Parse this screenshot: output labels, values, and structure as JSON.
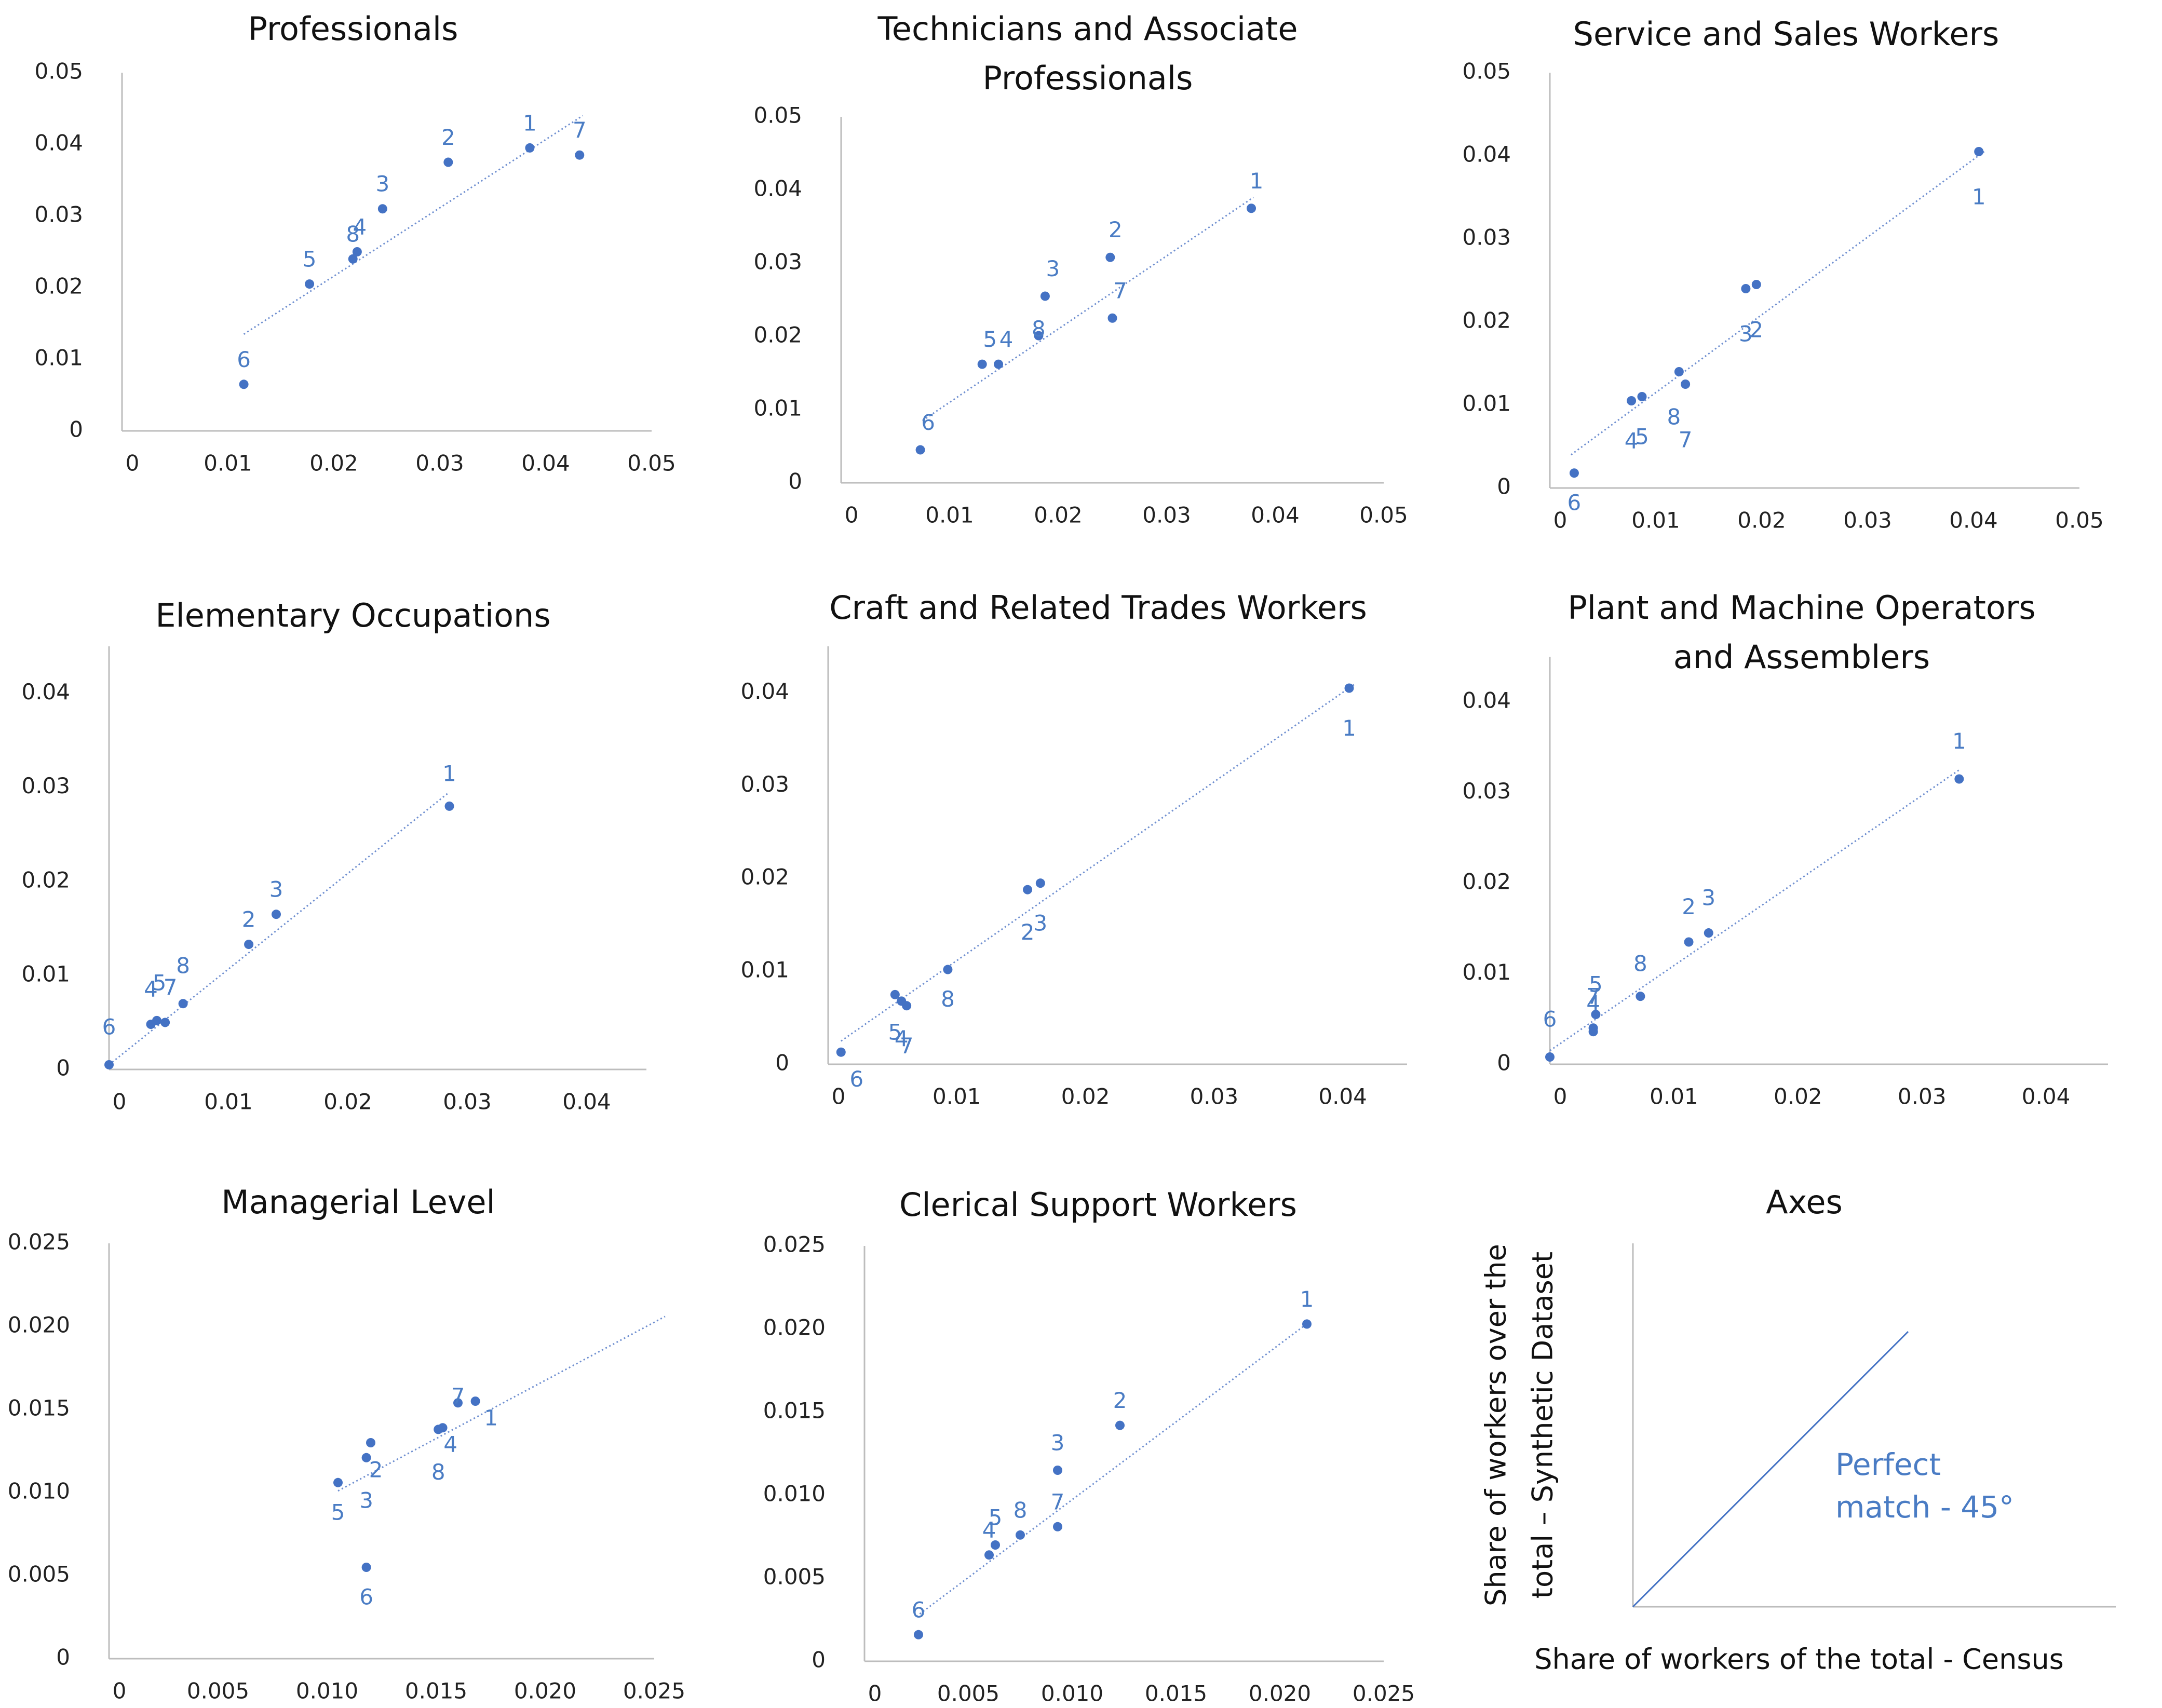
{
  "colors": {
    "point": "#4472c4",
    "label": "#4a7cc4",
    "trend": "#6f8fd0",
    "axis": "#bdbdbd",
    "ink": "#111111"
  },
  "chart_data": [
    {
      "type": "scatter",
      "title_lines": [
        "Professionals"
      ],
      "xlim": [
        0,
        0.05
      ],
      "ylim": [
        0,
        0.05
      ],
      "xticks": [
        "0",
        "0.01",
        "0.02",
        "0.03",
        "0.04",
        "0.05"
      ],
      "yticks": [
        "0",
        "0.01",
        "0.02",
        "0.03",
        "0.04",
        "0.05"
      ],
      "trendline": [
        [
          0.0115,
          0.0135
        ],
        [
          0.0435,
          0.044
        ]
      ],
      "points": [
        {
          "label": "1",
          "x": 0.0385,
          "y": 0.0395
        },
        {
          "label": "2",
          "x": 0.0308,
          "y": 0.0375
        },
        {
          "label": "3",
          "x": 0.0246,
          "y": 0.031
        },
        {
          "label": "4",
          "x": 0.0222,
          "y": 0.025
        },
        {
          "label": "5",
          "x": 0.0177,
          "y": 0.0205
        },
        {
          "label": "6",
          "x": 0.0115,
          "y": 0.0065
        },
        {
          "label": "7",
          "x": 0.0432,
          "y": 0.0385
        },
        {
          "label": "8",
          "x": 0.0218,
          "y": 0.024
        }
      ]
    },
    {
      "type": "scatter",
      "title_lines": [
        "Technicians and Associate",
        "Professionals"
      ],
      "xlim": [
        0,
        0.05
      ],
      "ylim": [
        0,
        0.05
      ],
      "xticks": [
        "0",
        "0.01",
        "0.02",
        "0.03",
        "0.04",
        "0.05"
      ],
      "yticks": [
        "0",
        "0.01",
        "0.02",
        "0.03",
        "0.04",
        "0.05"
      ],
      "trendline": [
        [
          0.0075,
          0.0085
        ],
        [
          0.038,
          0.039
        ]
      ],
      "points": [
        {
          "label": "1",
          "x": 0.0378,
          "y": 0.0375
        },
        {
          "label": "2",
          "x": 0.0248,
          "y": 0.0308
        },
        {
          "label": "3",
          "x": 0.0188,
          "y": 0.0255
        },
        {
          "label": "4",
          "x": 0.0145,
          "y": 0.0162
        },
        {
          "label": "5",
          "x": 0.013,
          "y": 0.0162
        },
        {
          "label": "6",
          "x": 0.0073,
          "y": 0.0045
        },
        {
          "label": "7",
          "x": 0.025,
          "y": 0.0225
        },
        {
          "label": "8",
          "x": 0.0182,
          "y": 0.0201
        }
      ]
    },
    {
      "type": "scatter",
      "title_lines": [
        "Service and Sales Workers"
      ],
      "xlim": [
        0,
        0.05
      ],
      "ylim": [
        0,
        0.05
      ],
      "xticks": [
        "0",
        "0.01",
        "0.02",
        "0.03",
        "0.04",
        "0.05"
      ],
      "yticks": [
        "0",
        "0.01",
        "0.02",
        "0.03",
        "0.04",
        "0.05"
      ],
      "trendline": [
        [
          0.002,
          0.004
        ],
        [
          0.041,
          0.0405
        ]
      ],
      "points": [
        {
          "label": "1",
          "x": 0.0405,
          "y": 0.0405
        },
        {
          "label": "2",
          "x": 0.0195,
          "y": 0.0245
        },
        {
          "label": "3",
          "x": 0.0185,
          "y": 0.024
        },
        {
          "label": "4",
          "x": 0.0077,
          "y": 0.0105
        },
        {
          "label": "5",
          "x": 0.0087,
          "y": 0.011
        },
        {
          "label": "6",
          "x": 0.0023,
          "y": 0.0018
        },
        {
          "label": "7",
          "x": 0.0128,
          "y": 0.0125
        },
        {
          "label": "8",
          "x": 0.0122,
          "y": 0.014
        }
      ]
    },
    {
      "type": "scatter",
      "title_lines": [
        "Elementary Occupations"
      ],
      "xlim": [
        0,
        0.045
      ],
      "ylim": [
        0,
        0.045
      ],
      "xticks": [
        "0",
        "0.01",
        "0.02",
        "0.03",
        "0.04"
      ],
      "yticks": [
        "0",
        "0.01",
        "0.02",
        "0.03",
        "0.04"
      ],
      "trendline": [
        [
          0.0,
          0.0005
        ],
        [
          0.0285,
          0.0295
        ]
      ],
      "points": [
        {
          "label": "1",
          "x": 0.0285,
          "y": 0.028
        },
        {
          "label": "2",
          "x": 0.0117,
          "y": 0.0133
        },
        {
          "label": "3",
          "x": 0.014,
          "y": 0.0165
        },
        {
          "label": "4",
          "x": 0.0035,
          "y": 0.0048
        },
        {
          "label": "5",
          "x": 0.004,
          "y": 0.0052
        },
        {
          "label": "6",
          "x": 0.0,
          "y": 0.0005
        },
        {
          "label": "7",
          "x": 0.0047,
          "y": 0.005
        },
        {
          "label": "8",
          "x": 0.0062,
          "y": 0.007
        }
      ]
    },
    {
      "type": "scatter",
      "title_lines": [
        "Craft and Related Trades Workers"
      ],
      "xlim": [
        0,
        0.045
      ],
      "ylim": [
        0,
        0.045
      ],
      "xticks": [
        "0",
        "0.01",
        "0.02",
        "0.03",
        "0.04"
      ],
      "yticks": [
        "0",
        "0.01",
        "0.02",
        "0.03",
        "0.04"
      ],
      "trendline": [
        [
          0.001,
          0.0025
        ],
        [
          0.041,
          0.041
        ]
      ],
      "points": [
        {
          "label": "1",
          "x": 0.0405,
          "y": 0.0405
        },
        {
          "label": "2",
          "x": 0.0155,
          "y": 0.0188
        },
        {
          "label": "3",
          "x": 0.0165,
          "y": 0.0195
        },
        {
          "label": "4",
          "x": 0.0057,
          "y": 0.0068
        },
        {
          "label": "5",
          "x": 0.0052,
          "y": 0.0075
        },
        {
          "label": "6",
          "x": 0.001,
          "y": 0.0013
        },
        {
          "label": "7",
          "x": 0.0061,
          "y": 0.0063
        },
        {
          "label": "8",
          "x": 0.0093,
          "y": 0.0102
        }
      ]
    },
    {
      "type": "scatter",
      "title_lines": [
        "Plant and Machine Operators",
        "and Assemblers"
      ],
      "xlim": [
        0,
        0.045
      ],
      "ylim": [
        0,
        0.045
      ],
      "xticks": [
        "0",
        "0.01",
        "0.02",
        "0.03",
        "0.04"
      ],
      "yticks": [
        "0",
        "0.01",
        "0.02",
        "0.03",
        "0.04"
      ],
      "trendline": [
        [
          0.0,
          0.0015
        ],
        [
          0.033,
          0.0325
        ]
      ],
      "points": [
        {
          "label": "1",
          "x": 0.033,
          "y": 0.0315
        },
        {
          "label": "2",
          "x": 0.0112,
          "y": 0.0135
        },
        {
          "label": "3",
          "x": 0.0128,
          "y": 0.0145
        },
        {
          "label": "4",
          "x": 0.0035,
          "y": 0.004
        },
        {
          "label": "5",
          "x": 0.0037,
          "y": 0.0055
        },
        {
          "label": "6",
          "x": 0.0,
          "y": 0.0008
        },
        {
          "label": "7",
          "x": 0.0035,
          "y": 0.0036
        },
        {
          "label": "8",
          "x": 0.0073,
          "y": 0.0075
        }
      ]
    },
    {
      "type": "scatter",
      "title_lines": [
        "Managerial Level"
      ],
      "xlim": [
        0,
        0.025
      ],
      "ylim": [
        0,
        0.025
      ],
      "xticks": [
        "0",
        "0.005",
        "0.010",
        "0.015",
        "0.020",
        "0.025"
      ],
      "yticks": [
        "0",
        "0.005",
        "0.010",
        "0.015",
        "0.020",
        "0.025"
      ],
      "trendline": [
        [
          0.0105,
          0.0101
        ],
        [
          0.0255,
          0.0206
        ]
      ],
      "points": [
        {
          "label": "1",
          "x": 0.0168,
          "y": 0.0155
        },
        {
          "label": "2",
          "x": 0.012,
          "y": 0.013
        },
        {
          "label": "3",
          "x": 0.0118,
          "y": 0.0121
        },
        {
          "label": "4",
          "x": 0.0153,
          "y": 0.0139
        },
        {
          "label": "5",
          "x": 0.0105,
          "y": 0.0106
        },
        {
          "label": "6",
          "x": 0.0118,
          "y": 0.0055
        },
        {
          "label": "7",
          "x": 0.016,
          "y": 0.0154
        },
        {
          "label": "8",
          "x": 0.0151,
          "y": 0.0138
        }
      ]
    },
    {
      "type": "scatter",
      "title_lines": [
        "Clerical Support Workers"
      ],
      "xlim": [
        0,
        0.025
      ],
      "ylim": [
        0,
        0.025
      ],
      "xticks": [
        "0",
        "0.005",
        "0.010",
        "0.015",
        "0.020",
        "0.025"
      ],
      "yticks": [
        "0",
        "0.005",
        "0.010",
        "0.015",
        "0.020",
        "0.025"
      ],
      "trendline": [
        [
          0.0025,
          0.0027
        ],
        [
          0.0215,
          0.0205
        ]
      ],
      "points": [
        {
          "label": "1",
          "x": 0.0213,
          "y": 0.0203
        },
        {
          "label": "2",
          "x": 0.0123,
          "y": 0.0142
        },
        {
          "label": "3",
          "x": 0.0093,
          "y": 0.0115
        },
        {
          "label": "4",
          "x": 0.006,
          "y": 0.0064
        },
        {
          "label": "5",
          "x": 0.0063,
          "y": 0.007
        },
        {
          "label": "6",
          "x": 0.0026,
          "y": 0.0016
        },
        {
          "label": "7",
          "x": 0.0093,
          "y": 0.0081
        },
        {
          "label": "8",
          "x": 0.0075,
          "y": 0.0076
        }
      ]
    }
  ],
  "legend_panel": {
    "title": "Axes",
    "y_axis_label_lines": [
      "Share of workers over the",
      "total – Synthetic Dataset"
    ],
    "x_axis_label": "Share of workers of the total - Census",
    "annotation_lines": [
      "Perfect",
      "match - 45°"
    ]
  }
}
